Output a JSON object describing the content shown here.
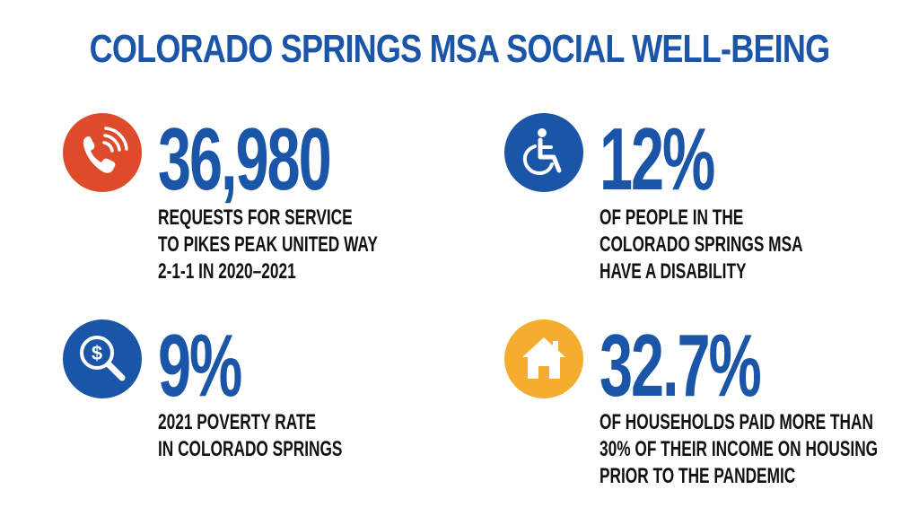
{
  "title": "COLORADO SPRINGS MSA SOCIAL WELL-BEING",
  "colors": {
    "brand_blue": "#1a55a8",
    "phone_red": "#dd4b2b",
    "house_gold": "#f5ad2f",
    "text_dark": "#111111"
  },
  "stats": [
    {
      "icon": "phone-icon",
      "value": "36,980",
      "lines": [
        "REQUESTS FOR SERVICE",
        "TO PIKES PEAK UNITED WAY",
        "2-1-1 IN 2020–2021"
      ]
    },
    {
      "icon": "wheelchair-icon",
      "value": "12%",
      "lines": [
        "OF PEOPLE IN THE",
        "COLORADO SPRINGS MSA",
        "HAVE A DISABILITY"
      ]
    },
    {
      "icon": "money-search-icon",
      "value": "9%",
      "lines": [
        "2021 POVERTY RATE",
        "IN COLORADO SPRINGS"
      ]
    },
    {
      "icon": "house-icon",
      "value": "32.7%",
      "lines": [
        "OF HOUSEHOLDS PAID MORE THAN",
        "30% OF THEIR INCOME ON HOUSING",
        "PRIOR TO THE PANDEMIC"
      ]
    }
  ]
}
